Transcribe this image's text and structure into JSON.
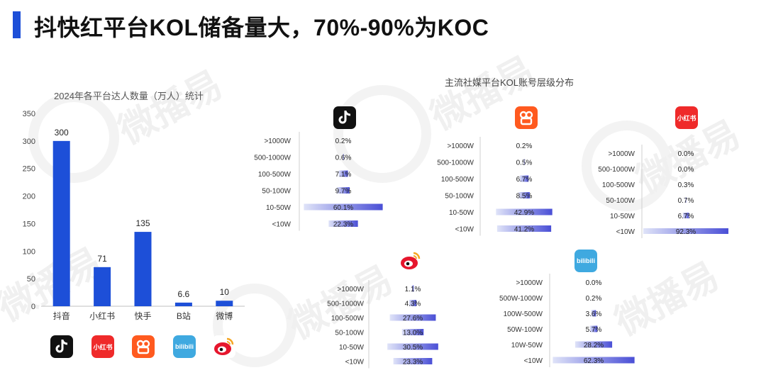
{
  "page": {
    "title": "抖快红平台KOL储备量大，70%-90%为KOC",
    "watermark": "微播易"
  },
  "colors": {
    "accent": "#1d4fd8",
    "bar": "#1d4fd8",
    "tier_gradient_start": "#dfe3f8",
    "tier_gradient_end": "#4a4fd6"
  },
  "icons": {
    "douyin": "douyin-logo-icon",
    "xiaohongshu": "xiaohongshu-logo-icon",
    "kuaishou": "kuaishou-logo-icon",
    "bilibili": "bilibili-logo-icon",
    "weibo": "weibo-logo-icon"
  },
  "logo_text": {
    "xiaohongshu": "小红书",
    "bilibili": "bilibili"
  },
  "chart_data": [
    {
      "type": "bar",
      "title": "2024年各平台达人数量（万人）统计",
      "categories": [
        "抖音",
        "小红书",
        "快手",
        "B站",
        "微博"
      ],
      "values": [
        300,
        71,
        135,
        6.6,
        10
      ],
      "value_labels": [
        "300",
        "71",
        "135",
        "6.6",
        "10"
      ],
      "y_ticks": [
        0,
        50,
        100,
        150,
        200,
        250,
        300,
        350
      ],
      "ylim": [
        0,
        350
      ],
      "grid": false,
      "xlabel": "",
      "ylabel": ""
    },
    {
      "type": "bar",
      "orientation": "horizontal",
      "group_title": "主流社媒平台KOL账号层级分布",
      "platform_icon": "douyin-logo-icon",
      "categories": [
        ">1000W",
        "500-1000W",
        "100-500W",
        "50-100W",
        "10-50W",
        "<10W"
      ],
      "values": [
        0.2,
        0.6,
        7.1,
        9.7,
        60.1,
        22.3
      ],
      "value_labels": [
        "0.2%",
        "0.6%",
        "7.1%",
        "9.7%",
        "60.1%",
        "22.3%"
      ],
      "xlim": [
        0,
        100
      ]
    },
    {
      "type": "bar",
      "orientation": "horizontal",
      "platform_icon": "kuaishou-logo-icon",
      "categories": [
        ">1000W",
        "500-1000W",
        "100-500W",
        "50-100W",
        "10-50W",
        "<10W"
      ],
      "values": [
        0.2,
        0.5,
        6.7,
        8.5,
        42.9,
        41.2
      ],
      "value_labels": [
        "0.2%",
        "0.5%",
        "6.7%",
        "8.5%",
        "42.9%",
        "41.2%"
      ],
      "xlim": [
        0,
        100
      ]
    },
    {
      "type": "bar",
      "orientation": "horizontal",
      "platform_icon": "xiaohongshu-logo-icon",
      "categories": [
        ">1000W",
        "500-1000W",
        "100-500W",
        "50-100W",
        "10-50W",
        "<10W"
      ],
      "values": [
        0.0,
        0.0,
        0.3,
        0.7,
        6.7,
        92.3
      ],
      "value_labels": [
        "0.0%",
        "0.0%",
        "0.3%",
        "0.7%",
        "6.7%",
        "92.3%"
      ],
      "xlim": [
        0,
        100
      ]
    },
    {
      "type": "bar",
      "orientation": "horizontal",
      "platform_icon": "weibo-logo-icon",
      "categories": [
        ">1000W",
        "500-1000W",
        "100-500W",
        "50-100W",
        "10-50W",
        "<10W"
      ],
      "values": [
        1.1,
        4.3,
        27.6,
        13.0,
        30.5,
        23.3
      ],
      "value_labels": [
        "1.1%",
        "4.3%",
        "27.6%",
        "13.0%",
        "30.5%",
        "23.3%"
      ],
      "xlim": [
        0,
        100
      ]
    },
    {
      "type": "bar",
      "orientation": "horizontal",
      "platform_icon": "bilibili-logo-icon",
      "categories": [
        ">1000W",
        "500W-1000W",
        "100W-500W",
        "50W-100W",
        "10W-50W",
        "<10W"
      ],
      "values": [
        0.0,
        0.2,
        3.6,
        5.7,
        28.2,
        62.3
      ],
      "value_labels": [
        "0.0%",
        "0.2%",
        "3.6%",
        "5.7%",
        "28.2%",
        "62.3%"
      ],
      "xlim": [
        0,
        100
      ]
    }
  ]
}
